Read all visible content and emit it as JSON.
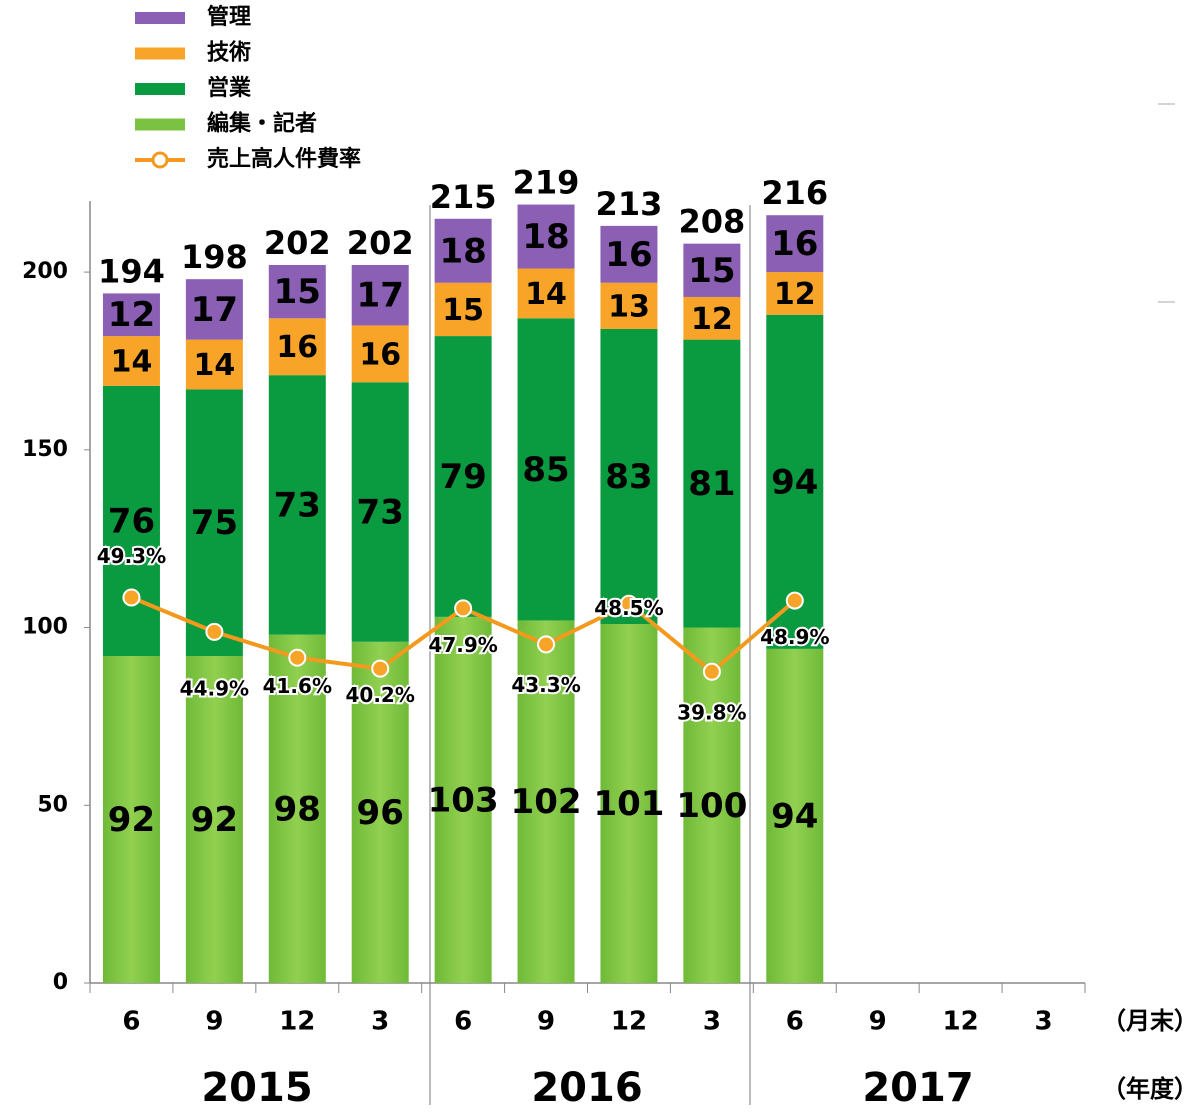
{
  "chart_data": {
    "type": "stacked_bar_line",
    "categories": [
      "6",
      "9",
      "12",
      "3",
      "6",
      "9",
      "12",
      "3",
      "6",
      "9",
      "12",
      "3"
    ],
    "x_unit_label": "（月末）",
    "group_unit_label": "（年度）",
    "groups": [
      "2015",
      "2016",
      "2017"
    ],
    "series": [
      {
        "name": "編集・記者",
        "color": "#7cc242",
        "values": [
          92,
          92,
          98,
          96,
          103,
          102,
          101,
          100,
          94,
          null,
          null,
          null
        ]
      },
      {
        "name": "営業",
        "color": "#0a9a3f",
        "values": [
          76,
          75,
          73,
          73,
          79,
          85,
          83,
          81,
          94,
          null,
          null,
          null
        ]
      },
      {
        "name": "技術",
        "color": "#f7a428",
        "values": [
          14,
          14,
          16,
          16,
          15,
          14,
          13,
          12,
          12,
          null,
          null,
          null
        ]
      },
      {
        "name": "管理",
        "color": "#8a5fb4",
        "values": [
          12,
          17,
          15,
          17,
          18,
          18,
          16,
          15,
          16,
          null,
          null,
          null
        ]
      },
      {
        "name": "売上高人件費率",
        "color": "#f39a1e",
        "axis": "y2",
        "type": "line",
        "values": [
          49.3,
          44.9,
          41.6,
          40.2,
          47.9,
          43.3,
          48.5,
          39.8,
          48.9,
          null,
          null,
          null
        ],
        "value_labels": [
          "49.3%",
          "44.9%",
          "41.6%",
          "40.2%",
          "47.9%",
          "43.3%",
          "48.5%",
          "39.8%",
          "48.9%",
          null,
          null,
          null
        ]
      }
    ],
    "totals": [
      194,
      198,
      202,
      202,
      215,
      219,
      213,
      208,
      216,
      null,
      null,
      null
    ],
    "ylim": [
      0,
      220
    ],
    "yticks": [
      0,
      50,
      100,
      150,
      200
    ],
    "y2lim": [
      0,
      100
    ],
    "legend": "top-left"
  }
}
